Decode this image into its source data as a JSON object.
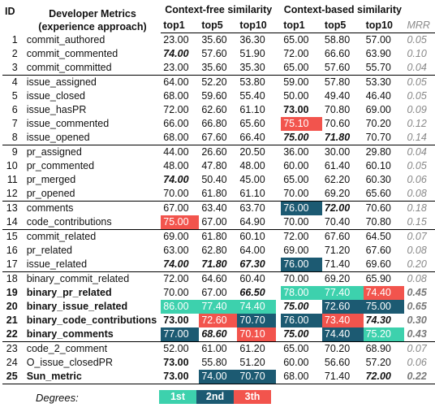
{
  "header": {
    "id": "ID",
    "title_line1": "Developer Metrics",
    "title_line2": "(experience approach)",
    "group_cf": "Context-free similarity",
    "group_cb": "Context-based similarity",
    "cols": [
      "top1",
      "top5",
      "top10"
    ],
    "mrr": "MRR"
  },
  "rows": [
    {
      "id": "1",
      "name": "commit_authored",
      "cf": [
        "23.00",
        "35.60",
        "36.30"
      ],
      "cb": [
        "65.00",
        "58.80",
        "57.00"
      ],
      "mrr": "0.05"
    },
    {
      "id": "2",
      "name": "commit_commented",
      "cf": [
        "74.00",
        "57.60",
        "51.90"
      ],
      "cb": [
        "72.00",
        "66.60",
        "63.90"
      ],
      "mrr": "0.10"
    },
    {
      "id": "3",
      "name": "commit_committed",
      "cf": [
        "23.00",
        "35.60",
        "35.30"
      ],
      "cb": [
        "65.00",
        "57.60",
        "55.70"
      ],
      "mrr": "0.04"
    },
    {
      "id": "4",
      "name": "issue_assigned",
      "cf": [
        "64.00",
        "52.20",
        "53.80"
      ],
      "cb": [
        "59.00",
        "57.80",
        "53.30"
      ],
      "mrr": "0.05"
    },
    {
      "id": "5",
      "name": "issue_closed",
      "cf": [
        "68.00",
        "59.60",
        "55.40"
      ],
      "cb": [
        "50.00",
        "49.40",
        "46.40"
      ],
      "mrr": "0.05"
    },
    {
      "id": "6",
      "name": "issue_hasPR",
      "cf": [
        "72.00",
        "62.60",
        "61.10"
      ],
      "cb": [
        "73.00",
        "70.80",
        "69.00"
      ],
      "mrr": "0.09"
    },
    {
      "id": "7",
      "name": "issue_commented",
      "cf": [
        "66.00",
        "66.80",
        "65.60"
      ],
      "cb": [
        "75.10",
        "70.60",
        "70.20"
      ],
      "mrr": "0.12"
    },
    {
      "id": "8",
      "name": "issue_opened",
      "cf": [
        "68.00",
        "67.60",
        "66.40"
      ],
      "cb": [
        "75.00",
        "71.80",
        "70.70"
      ],
      "mrr": "0.14"
    },
    {
      "id": "9",
      "name": "pr_assigned",
      "cf": [
        "44.00",
        "26.60",
        "20.50"
      ],
      "cb": [
        "36.00",
        "30.00",
        "29.80"
      ],
      "mrr": "0.04"
    },
    {
      "id": "10",
      "name": "pr_commented",
      "cf": [
        "48.00",
        "47.80",
        "48.00"
      ],
      "cb": [
        "60.00",
        "61.40",
        "60.10"
      ],
      "mrr": "0.05"
    },
    {
      "id": "11",
      "name": "pr_merged",
      "cf": [
        "74.00",
        "50.40",
        "45.00"
      ],
      "cb": [
        "65.00",
        "62.20",
        "60.30"
      ],
      "mrr": "0.06"
    },
    {
      "id": "12",
      "name": "pr_opened",
      "cf": [
        "70.00",
        "61.80",
        "61.10"
      ],
      "cb": [
        "70.00",
        "69.20",
        "65.60"
      ],
      "mrr": "0.08"
    },
    {
      "id": "13",
      "name": "comments",
      "cf": [
        "67.00",
        "63.40",
        "63.70"
      ],
      "cb": [
        "76.00",
        "72.00",
        "70.60"
      ],
      "mrr": "0.18"
    },
    {
      "id": "14",
      "name": "code_contributions",
      "cf": [
        "75.00",
        "67.00",
        "64.90"
      ],
      "cb": [
        "70.00",
        "70.40",
        "70.80"
      ],
      "mrr": "0.15"
    },
    {
      "id": "15",
      "name": "commit_related",
      "cf": [
        "69.00",
        "61.80",
        "60.10"
      ],
      "cb": [
        "72.00",
        "67.60",
        "64.50"
      ],
      "mrr": "0.07"
    },
    {
      "id": "16",
      "name": "pr_related",
      "cf": [
        "63.00",
        "62.80",
        "64.00"
      ],
      "cb": [
        "69.00",
        "71.20",
        "67.60"
      ],
      "mrr": "0.08"
    },
    {
      "id": "17",
      "name": "issue_related",
      "cf": [
        "74.00",
        "71.80",
        "67.30"
      ],
      "cb": [
        "76.00",
        "71.40",
        "69.60"
      ],
      "mrr": "0.20"
    },
    {
      "id": "18",
      "name": "binary_commit_related",
      "cf": [
        "72.00",
        "64.60",
        "60.40"
      ],
      "cb": [
        "70.00",
        "69.20",
        "65.90"
      ],
      "mrr": "0.08"
    },
    {
      "id": "19",
      "name": "binary_pr_related",
      "cf": [
        "70.00",
        "67.00",
        "66.50"
      ],
      "cb": [
        "78.00",
        "77.40",
        "74.40"
      ],
      "mrr": "0.45"
    },
    {
      "id": "20",
      "name": "binary_issue_related",
      "cf": [
        "86.00",
        "77.40",
        "74.40"
      ],
      "cb": [
        "75.00",
        "72.60",
        "75.00"
      ],
      "mrr": "0.65"
    },
    {
      "id": "21",
      "name": "binary_code_contributions",
      "cf": [
        "73.00",
        "72.60",
        "70.70"
      ],
      "cb": [
        "76.00",
        "73.40",
        "74.30"
      ],
      "mrr": "0.30"
    },
    {
      "id": "22",
      "name": "binary_comments",
      "cf": [
        "77.00",
        "68.60",
        "70.10"
      ],
      "cb": [
        "75.00",
        "74.40",
        "75.20"
      ],
      "mrr": "0.43"
    },
    {
      "id": "23",
      "name": "code_2_comment",
      "cf": [
        "52.00",
        "61.00",
        "61.20"
      ],
      "cb": [
        "65.00",
        "70.20",
        "68.90"
      ],
      "mrr": "0.07"
    },
    {
      "id": "24",
      "name": "O_issue_closedPR",
      "cf": [
        "73.00",
        "55.80",
        "51.20"
      ],
      "cb": [
        "60.00",
        "56.60",
        "57.20"
      ],
      "mrr": "0.06"
    },
    {
      "id": "25",
      "name": "Sun_metric",
      "cf": [
        "73.00",
        "74.00",
        "70.70"
      ],
      "cb": [
        "68.00",
        "71.40",
        "72.00"
      ],
      "mrr": "0.22"
    }
  ],
  "legend": {
    "label": "Degrees:",
    "items": [
      "1st",
      "2nd",
      "3th"
    ]
  },
  "colors": {
    "rank_1st": "#3dd1ad",
    "rank_2nd": "#1c5a72",
    "rank_3th": "#f2544d"
  }
}
